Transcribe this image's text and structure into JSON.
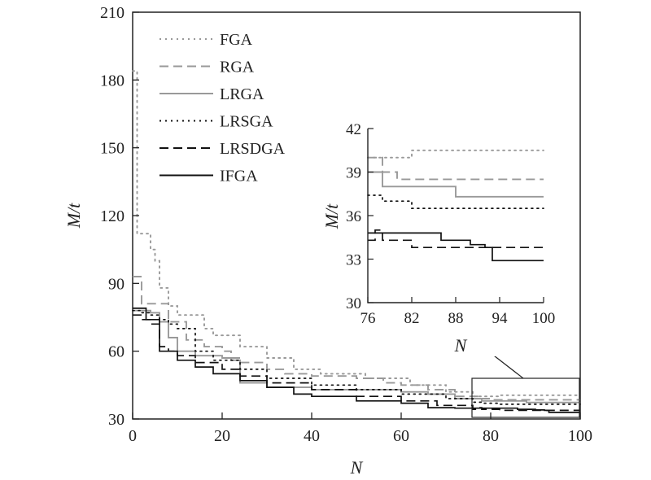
{
  "chart_data": [
    {
      "type": "line",
      "xlabel": "N",
      "ylabel": "M/t",
      "xlim": [
        0,
        100
      ],
      "ylim": [
        30,
        210
      ],
      "xticks": [
        "0",
        "20",
        "40",
        "60",
        "80",
        "100"
      ],
      "yticks": [
        "30",
        "60",
        "90",
        "120",
        "150",
        "180",
        "210"
      ],
      "legend_position": "top-left",
      "series": [
        {
          "name": "FGA",
          "color": "#999999",
          "style": "dotted",
          "points": [
            [
              0,
              184
            ],
            [
              1,
              112
            ],
            [
              4,
              105
            ],
            [
              5,
              100
            ],
            [
              6,
              88
            ],
            [
              8,
              80
            ],
            [
              10,
              76
            ],
            [
              14,
              76
            ],
            [
              16,
              70
            ],
            [
              18,
              67
            ],
            [
              24,
              62
            ],
            [
              30,
              57
            ],
            [
              36,
              52
            ],
            [
              42,
              50
            ],
            [
              52,
              48
            ],
            [
              62,
              45
            ],
            [
              70,
              42
            ],
            [
              76,
              40
            ],
            [
              82,
              40.5
            ],
            [
              100,
              40.5
            ]
          ]
        },
        {
          "name": "RGA",
          "color": "#999999",
          "style": "dashed",
          "points": [
            [
              0,
              93
            ],
            [
              2,
              81
            ],
            [
              6,
              81
            ],
            [
              8,
              73
            ],
            [
              12,
              65
            ],
            [
              16,
              62
            ],
            [
              20,
              60
            ],
            [
              22,
              57
            ],
            [
              24,
              55
            ],
            [
              30,
              52
            ],
            [
              34,
              50
            ],
            [
              40,
              49
            ],
            [
              50,
              48
            ],
            [
              56,
              46
            ],
            [
              60,
              45
            ],
            [
              66,
              43
            ],
            [
              72,
              40
            ],
            [
              78,
              39
            ],
            [
              80,
              38.5
            ],
            [
              100,
              38.5
            ]
          ]
        },
        {
          "name": "LRGA",
          "color": "#999999",
          "style": "solid",
          "points": [
            [
              0,
              78
            ],
            [
              2,
              78
            ],
            [
              4,
              77
            ],
            [
              6,
              73
            ],
            [
              8,
              66
            ],
            [
              10,
              60
            ],
            [
              14,
              58
            ],
            [
              20,
              57
            ],
            [
              22,
              56
            ],
            [
              24,
              46
            ],
            [
              30,
              44
            ],
            [
              40,
              43
            ],
            [
              50,
              43
            ],
            [
              60,
              42
            ],
            [
              66,
              41
            ],
            [
              72,
              39
            ],
            [
              78,
              38
            ],
            [
              86,
              38
            ],
            [
              88,
              37.3
            ],
            [
              100,
              37.3
            ]
          ]
        },
        {
          "name": "LRSGA",
          "color": "#111111",
          "style": "dotted",
          "points": [
            [
              0,
              78
            ],
            [
              2,
              77
            ],
            [
              4,
              76
            ],
            [
              6,
              74
            ],
            [
              8,
              72
            ],
            [
              10,
              70
            ],
            [
              14,
              60
            ],
            [
              18,
              56
            ],
            [
              24,
              52
            ],
            [
              30,
              48
            ],
            [
              40,
              45
            ],
            [
              50,
              43
            ],
            [
              60,
              41
            ],
            [
              70,
              39
            ],
            [
              76,
              37.4
            ],
            [
              78,
              37
            ],
            [
              82,
              36.5
            ],
            [
              100,
              36.5
            ]
          ]
        },
        {
          "name": "LRSDGA",
          "color": "#111111",
          "style": "dashed",
          "points": [
            [
              0,
              76
            ],
            [
              2,
              74
            ],
            [
              4,
              72
            ],
            [
              6,
              62
            ],
            [
              8,
              60
            ],
            [
              10,
              58
            ],
            [
              14,
              55
            ],
            [
              20,
              52
            ],
            [
              24,
              49
            ],
            [
              30,
              46
            ],
            [
              40,
              43
            ],
            [
              50,
              40
            ],
            [
              60,
              38
            ],
            [
              68,
              36
            ],
            [
              76,
              34.3
            ],
            [
              77,
              35
            ],
            [
              78,
              34.3
            ],
            [
              82,
              33.8
            ],
            [
              100,
              33.8
            ]
          ]
        },
        {
          "name": "IFGA",
          "color": "#111111",
          "style": "solid",
          "points": [
            [
              0,
              79
            ],
            [
              3,
              74
            ],
            [
              6,
              60
            ],
            [
              10,
              56
            ],
            [
              14,
              53
            ],
            [
              18,
              50
            ],
            [
              24,
              47
            ],
            [
              30,
              44
            ],
            [
              36,
              41
            ],
            [
              40,
              40
            ],
            [
              50,
              38
            ],
            [
              60,
              37
            ],
            [
              66,
              35
            ],
            [
              72,
              34.8
            ],
            [
              86,
              34.3
            ],
            [
              90,
              34
            ],
            [
              92,
              33.8
            ],
            [
              93,
              32.9
            ],
            [
              100,
              32.9
            ]
          ]
        }
      ]
    },
    {
      "type": "line",
      "role": "inset",
      "xlabel": "N",
      "ylabel": "M/t",
      "xlim": [
        76,
        100
      ],
      "ylim": [
        30,
        42
      ],
      "xticks": [
        "76",
        "82",
        "88",
        "94",
        "100"
      ],
      "yticks": [
        "30",
        "33",
        "36",
        "39",
        "42"
      ]
    }
  ]
}
